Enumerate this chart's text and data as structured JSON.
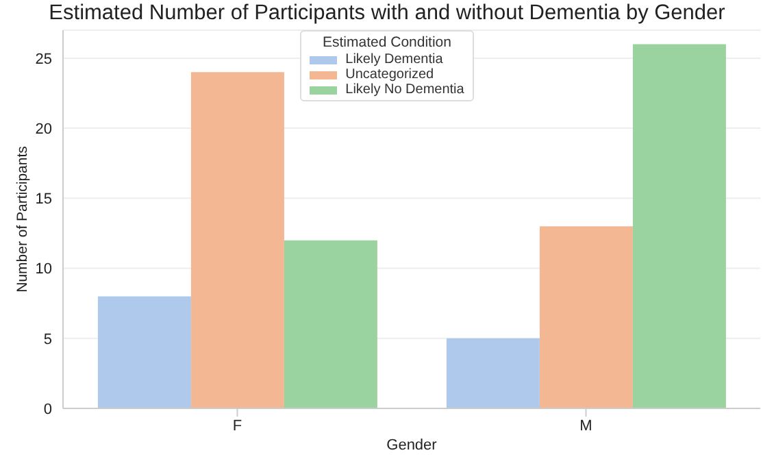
{
  "chart_data": {
    "type": "bar",
    "title": "Estimated Number of Participants with and without Dementia by Gender",
    "xlabel": "Gender",
    "ylabel": "Number of Participants",
    "legend_title": "Estimated Condition",
    "categories": [
      "F",
      "M"
    ],
    "series": [
      {
        "name": "Likely Dementia",
        "color": "#aec9ec",
        "values": [
          8,
          5
        ]
      },
      {
        "name": "Uncategorized",
        "color": "#f3b893",
        "values": [
          24,
          13
        ]
      },
      {
        "name": "Likely No Dementia",
        "color": "#9bd3a0",
        "values": [
          12,
          26
        ]
      }
    ],
    "ylim": [
      0,
      27
    ],
    "yticks": [
      0,
      5,
      10,
      15,
      20,
      25
    ],
    "grid": "y",
    "legend": "top"
  }
}
